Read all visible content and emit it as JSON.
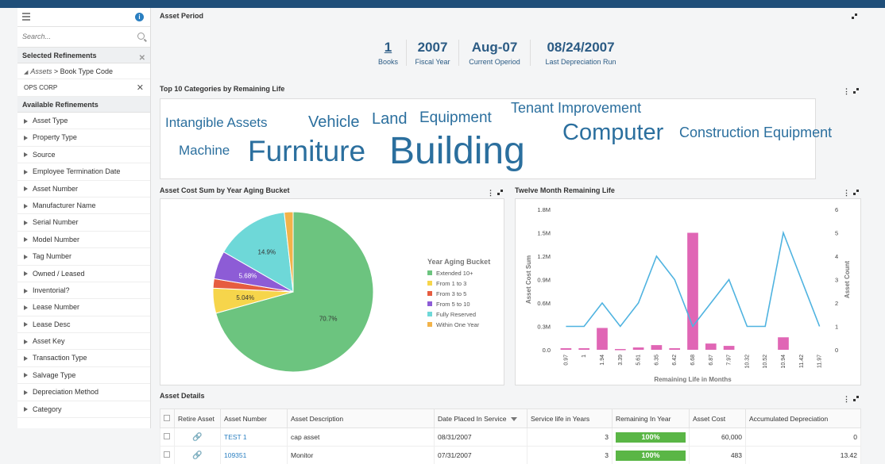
{
  "sidebar": {
    "search_placeholder": "Search...",
    "selected_title": "Selected Refinements",
    "crumb_link": "Assets",
    "crumb_sep": " > ",
    "crumb_text": "Book Type Code",
    "chip": "OPS CORP",
    "available_title": "Available Refinements",
    "items": [
      "Asset Type",
      "Property Type",
      "Source",
      "Employee Termination Date",
      "Asset Number",
      "Manufacturer Name",
      "Serial Number",
      "Model Number",
      "Tag Number",
      "Owned / Leased",
      "Inventorial?",
      "Lease Number",
      "Lease Desc",
      "Asset Key",
      "Transaction Type",
      "Salvage Type",
      "Depreciation Method",
      "Category"
    ]
  },
  "period": {
    "title": "Asset Period",
    "kpis": [
      {
        "value": "1",
        "label": "Books"
      },
      {
        "value": "2007",
        "label": "Fiscal Year"
      },
      {
        "value": "Aug-07",
        "label": "Current Operiod"
      },
      {
        "value": "08/24/2007",
        "label": "Last Depreciation Run"
      }
    ]
  },
  "cloud": {
    "title": "Top 10 Categories by Remaining Life",
    "words": [
      "Intangible Assets",
      "Vehicle",
      "Land",
      "Equipment",
      "Tenant Improvement",
      "Computer",
      "Construction Equipment",
      "Machine",
      "Furniture",
      "Building"
    ]
  },
  "pie_title": "Asset Cost Sum by Year Aging Bucket",
  "combo_title": "Twelve Month Remaining Life",
  "chart_data": [
    {
      "type": "pie",
      "legend_title": "Year Aging Bucket",
      "legend_position": "right",
      "slices": [
        {
          "name": "Extended 10+",
          "value": 70.7,
          "label": "70.7%",
          "color": "#6cc47f"
        },
        {
          "name": "From 1 to 3",
          "value": 5.04,
          "label": "5.04%",
          "color": "#f6d54b"
        },
        {
          "name": "From 3 to 5",
          "value": 1.9,
          "label": "",
          "color": "#e65c40"
        },
        {
          "name": "From 5 to 10",
          "value": 5.68,
          "label": "5.68%",
          "color": "#8d5cd6"
        },
        {
          "name": "Fully Reserved",
          "value": 14.9,
          "label": "14.9%",
          "color": "#6ed8d8"
        },
        {
          "name": "Within One Year",
          "value": 1.78,
          "label": "",
          "color": "#f2b34a"
        }
      ]
    },
    {
      "type": "bar+line",
      "xlabel": "Remaining Life in Months",
      "ylabel": "Asset Cost Sum",
      "y2label": "Asset Count",
      "categories": [
        "0.97",
        "1",
        "1.94",
        "3.39",
        "5.61",
        "6.35",
        "6.42",
        "6.68",
        "6.87",
        "7.97",
        "10.32",
        "10.52",
        "10.94",
        "11.42",
        "11.97"
      ],
      "ylim": [
        0,
        1.8
      ],
      "yticks": [
        "0.0",
        "0.3M",
        "0.6M",
        "0.9M",
        "1.2M",
        "1.5M",
        "1.8M"
      ],
      "y2lim": [
        0,
        6
      ],
      "y2ticks": [
        "0",
        "1",
        "2",
        "3",
        "4",
        "5",
        "6"
      ],
      "bars": {
        "name": "Asset Cost Sum",
        "color": "#e066b5",
        "values": [
          0.02,
          0.02,
          0.28,
          0.01,
          0.03,
          0.06,
          0.02,
          1.5,
          0.08,
          0.05,
          0.0,
          0.0,
          0.16,
          0.0,
          0.0
        ]
      },
      "line": {
        "name": "Asset Count",
        "color": "#4fb3e0",
        "values": [
          1,
          1,
          2,
          1,
          2,
          4,
          3,
          1,
          2,
          3,
          1,
          1,
          5,
          3,
          1
        ]
      }
    }
  ],
  "details": {
    "title": "Asset Details",
    "columns": [
      "Retire Asset",
      "Asset Number",
      "Asset Description",
      "Date Placed In Service",
      "Service life in Years",
      "Remaining In Year",
      "Asset Cost",
      "Accumulated Depreciation"
    ],
    "rows": [
      {
        "number": "TEST 1",
        "desc": "cap asset",
        "date": "08/31/2007",
        "life": "3",
        "remaining": "100%",
        "cost": "60,000",
        "accum": "0"
      },
      {
        "number": "109351",
        "desc": "Monitor",
        "date": "07/31/2007",
        "life": "3",
        "remaining": "100%",
        "cost": "483",
        "accum": "13.42"
      }
    ]
  }
}
